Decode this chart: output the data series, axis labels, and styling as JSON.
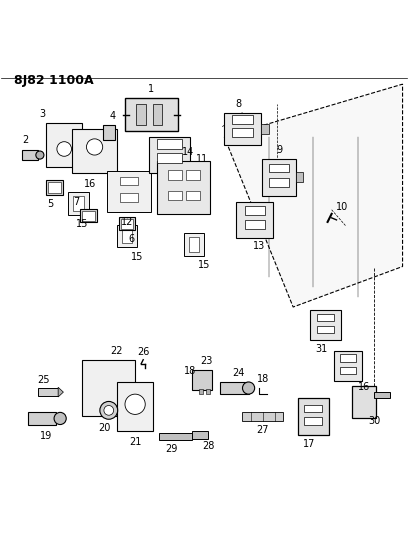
{
  "title": "8J82 1100A",
  "bg_color": "#ffffff",
  "line_color": "#000000",
  "title_fontsize": 9,
  "label_fontsize": 7,
  "fig_width": 4.08,
  "fig_height": 5.33,
  "dpi": 100
}
